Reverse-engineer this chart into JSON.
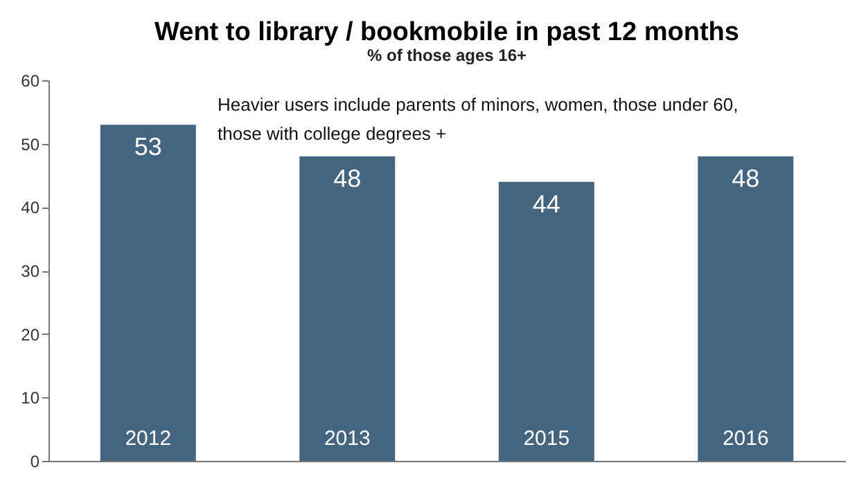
{
  "chart_data": {
    "type": "bar",
    "title": "Went to library / bookmobile in past 12 months",
    "subtitle": "% of those ages 16+",
    "categories": [
      "2012",
      "2013",
      "2015",
      "2016"
    ],
    "values": [
      53,
      48,
      44,
      48
    ],
    "color": "#436580",
    "ylim": [
      0,
      60
    ],
    "yticks": [
      0,
      10,
      20,
      30,
      40,
      50,
      60
    ],
    "grid": false,
    "data_labels": true,
    "annotations": [
      "Heavier users include parents of minors, women, those under  60,\nthose with college degrees +"
    ]
  }
}
